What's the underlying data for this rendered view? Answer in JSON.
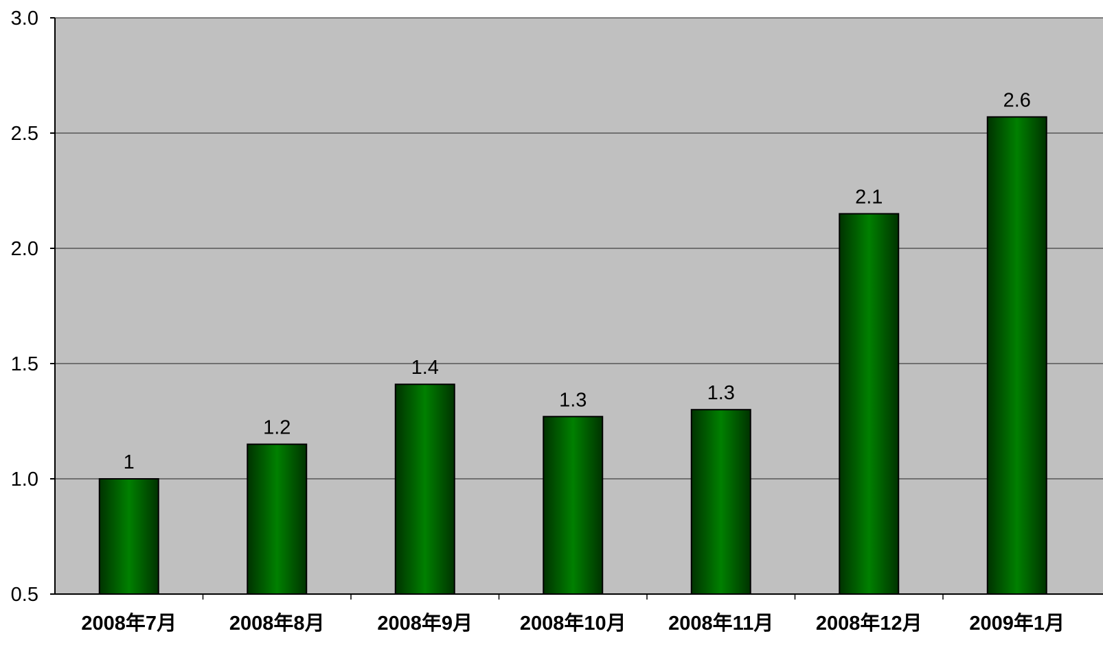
{
  "chart_data": {
    "type": "bar",
    "categories": [
      "2008年7月",
      "2008年8月",
      "2008年9月",
      "2008年10月",
      "2008年11月",
      "2008年12月",
      "2009年1月"
    ],
    "values": [
      1.0,
      1.15,
      1.41,
      1.27,
      1.3,
      2.15,
      2.57
    ],
    "data_labels": [
      "1",
      "1.2",
      "1.4",
      "1.3",
      "1.3",
      "2.1",
      "2.6"
    ],
    "title": "",
    "xlabel": "",
    "ylabel": "",
    "ylim": [
      0.5,
      3.0
    ],
    "yticks": [
      "0.5",
      "1.0",
      "1.5",
      "2.0",
      "2.5",
      "3.0"
    ],
    "grid": true,
    "legend": "none",
    "colors": {
      "plot_background": "#c0c0c0",
      "bar_dark": "#003300",
      "bar_light": "#008000",
      "gridline": "#404040",
      "text": "#000000"
    }
  }
}
